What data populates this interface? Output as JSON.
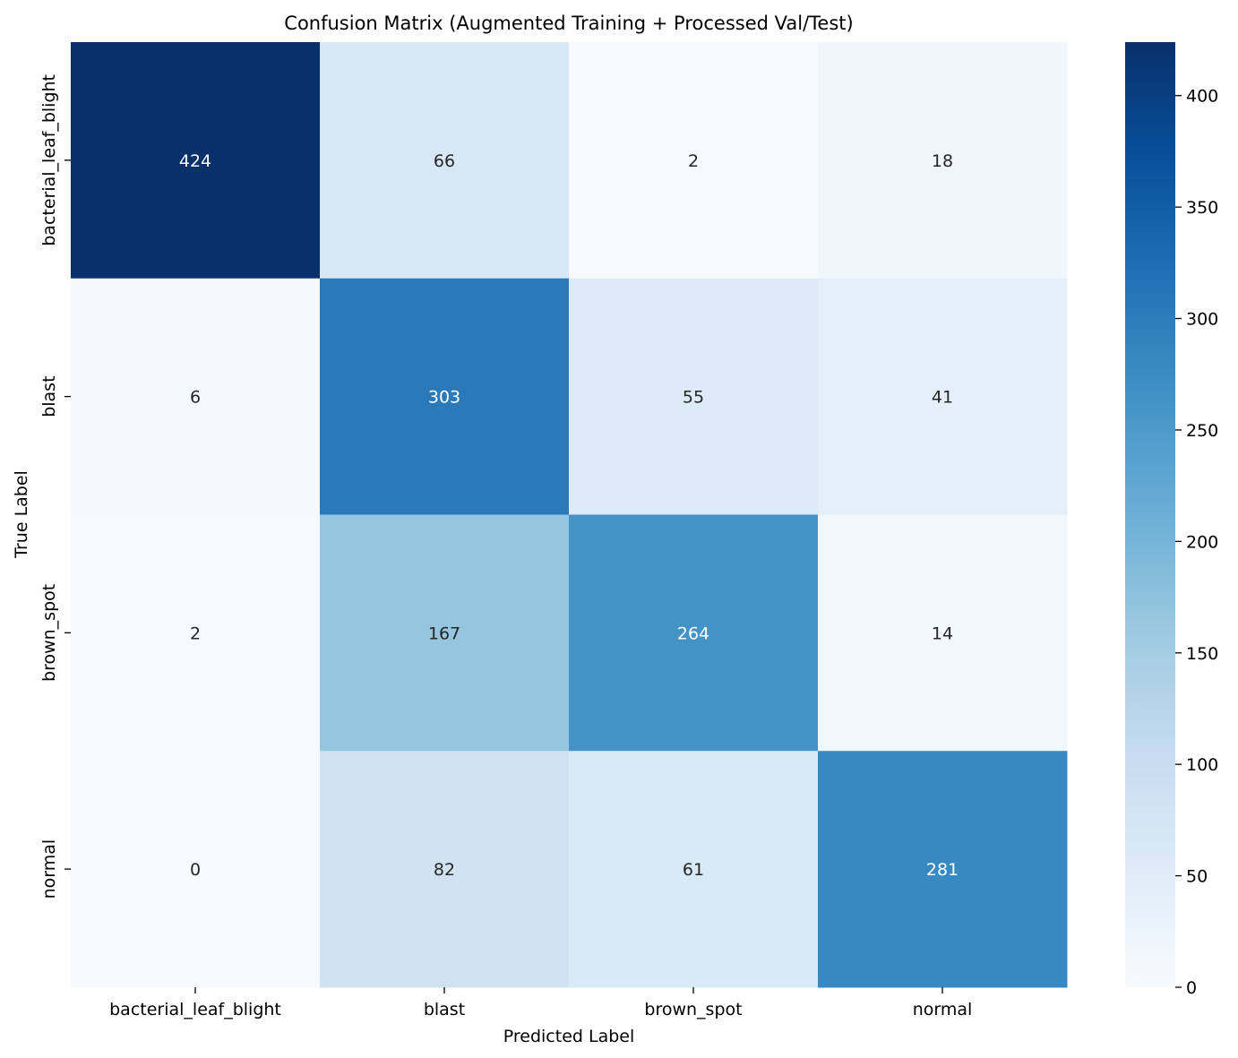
{
  "chart_data": {
    "type": "heatmap",
    "title": "Confusion Matrix (Augmented Training + Processed Val/Test)",
    "xlabel": "Predicted Label",
    "ylabel": "True Label",
    "x_categories": [
      "bacterial_leaf_blight",
      "blast",
      "brown_spot",
      "normal"
    ],
    "y_categories": [
      "bacterial_leaf_blight",
      "blast",
      "brown_spot",
      "normal"
    ],
    "values": [
      [
        424,
        66,
        2,
        18
      ],
      [
        6,
        303,
        55,
        41
      ],
      [
        2,
        167,
        264,
        14
      ],
      [
        0,
        82,
        61,
        281
      ]
    ],
    "colormap": "Blues",
    "colorbar": {
      "range": [
        0,
        424
      ],
      "ticks": [
        0,
        50,
        100,
        150,
        200,
        250,
        300,
        350,
        400
      ]
    }
  }
}
